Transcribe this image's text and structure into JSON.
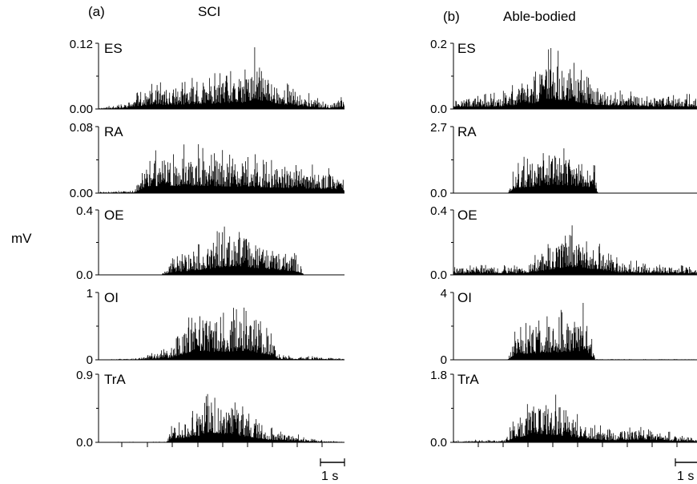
{
  "figure": {
    "unit_label": "mV",
    "scale_bar_label": "1 s",
    "scale_bar_seconds": 1
  },
  "chart_data": [
    {
      "type": "area",
      "panel_label": "(a)",
      "title": "SCI",
      "x_unit": "s",
      "duration_s": 10.2,
      "muscles": [
        {
          "name": "ES",
          "ylim": [
            0,
            0.12
          ],
          "tick_labels": [
            "0.00",
            "0.12"
          ],
          "envelope": {
            "t": [
              0,
              1.0,
              2.0,
              4.0,
              6.0,
              6.5,
              7.5,
              9.5,
              10.2
            ],
            "peak": [
              0.003,
              0.01,
              0.045,
              0.06,
              0.075,
              0.118,
              0.06,
              0.01,
              0.025
            ]
          }
        },
        {
          "name": "RA",
          "ylim": [
            0,
            0.08
          ],
          "tick_labels": [
            "0.00",
            "0.08"
          ],
          "envelope": {
            "t": [
              0,
              1.5,
              2.0,
              4.0,
              6.0,
              8.0,
              10.0,
              10.2
            ],
            "peak": [
              0.002,
              0.004,
              0.055,
              0.06,
              0.05,
              0.04,
              0.03,
              0.02
            ]
          }
        },
        {
          "name": "OE",
          "ylim": [
            0,
            0.4
          ],
          "tick_labels": [
            "0.0",
            "0.4"
          ],
          "envelope": {
            "t": [
              0,
              2.6,
              3.0,
              4.5,
              5.6,
              6.5,
              8.3,
              8.5,
              10.2
            ],
            "peak": [
              0,
              0,
              0.1,
              0.22,
              0.36,
              0.28,
              0.12,
              0,
              0
            ]
          }
        },
        {
          "name": "OI",
          "ylim": [
            0,
            1
          ],
          "tick_labels": [
            "0",
            "1"
          ],
          "envelope": {
            "t": [
              0,
              1.6,
              3.0,
              4.0,
              5.0,
              6.0,
              7.0,
              7.5,
              10.2
            ],
            "peak": [
              0,
              0.03,
              0.2,
              0.88,
              0.78,
              0.85,
              0.55,
              0.08,
              0.03
            ]
          }
        },
        {
          "name": "TrA",
          "ylim": [
            0,
            0.9
          ],
          "tick_labels": [
            "0.0",
            "0.9"
          ],
          "envelope": {
            "t": [
              0,
              2.8,
              3.0,
              4.0,
              4.7,
              5.5,
              7.0,
              9.0,
              10.2
            ],
            "peak": [
              0.005,
              0.01,
              0.25,
              0.5,
              0.84,
              0.7,
              0.22,
              0.04,
              0.01
            ]
          }
        }
      ]
    },
    {
      "type": "area",
      "panel_label": "(b)",
      "title": "Able-bodied",
      "x_unit": "s",
      "duration_s": 10.3,
      "muscles": [
        {
          "name": "ES",
          "ylim": [
            0,
            0.2
          ],
          "tick_labels": [
            "0.2",
            "0.0"
          ],
          "envelope": {
            "t": [
              0,
              2.0,
              3.5,
              4.0,
              5.0,
              6.0,
              8.0,
              10.3
            ],
            "peak": [
              0.045,
              0.05,
              0.12,
              0.2,
              0.16,
              0.08,
              0.05,
              0.045
            ]
          }
        },
        {
          "name": "RA",
          "ylim": [
            0,
            2.7
          ],
          "tick_labels": [
            "2.7",
            "0.0"
          ],
          "envelope": {
            "t": [
              0,
              2.3,
              2.6,
              4.0,
              5.0,
              6.0,
              6.1,
              10.3
            ],
            "peak": [
              0,
              0,
              1.2,
              2.2,
              2.0,
              1.4,
              0,
              0
            ]
          }
        },
        {
          "name": "OE",
          "ylim": [
            0,
            0.4
          ],
          "tick_labels": [
            "0.4",
            "0.0"
          ],
          "envelope": {
            "t": [
              0,
              3.0,
              4.0,
              4.8,
              5.5,
              7.0,
              10.3
            ],
            "peak": [
              0.06,
              0.07,
              0.2,
              0.33,
              0.28,
              0.1,
              0.05
            ]
          }
        },
        {
          "name": "OI",
          "ylim": [
            0,
            4
          ],
          "tick_labels": [
            "4",
            "0"
          ],
          "envelope": {
            "t": [
              0,
              2.3,
              2.6,
              3.5,
              4.5,
              5.6,
              6.0,
              10.3
            ],
            "peak": [
              0,
              0,
              2.2,
              2.6,
              3.0,
              3.5,
              0.05,
              0.05
            ]
          }
        },
        {
          "name": "TrA",
          "ylim": [
            0,
            1.8
          ],
          "tick_labels": [
            "1.8",
            "0.0"
          ],
          "envelope": {
            "t": [
              0,
              2.2,
              2.5,
              3.5,
              4.5,
              5.5,
              6.5,
              8.0,
              10.3
            ],
            "peak": [
              0.06,
              0.08,
              0.6,
              1.55,
              1.2,
              0.7,
              0.35,
              0.5,
              0.08
            ]
          }
        }
      ]
    }
  ]
}
